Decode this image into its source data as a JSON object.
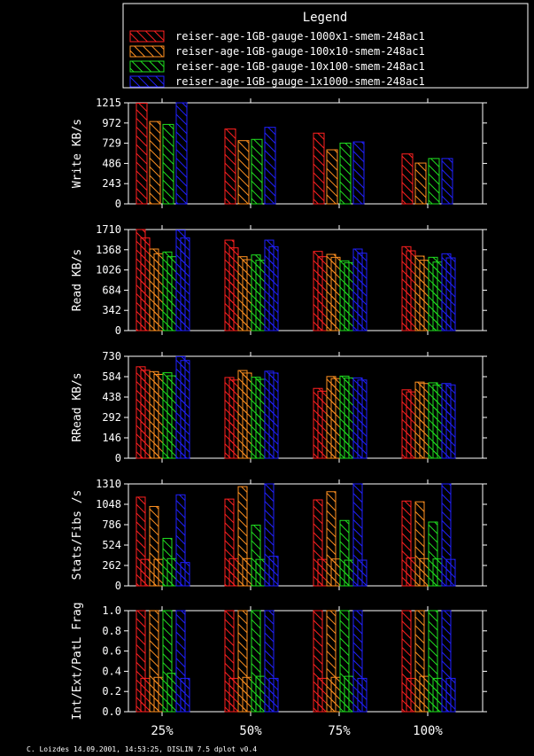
{
  "legend": {
    "title": "Legend",
    "entries": [
      {
        "name": "reiser-age-1GB-gauge-1000x1-smem-248ac1",
        "color": "#ff2020"
      },
      {
        "name": "reiser-age-1GB-gauge-100x10-smem-248ac1",
        "color": "#ff9020"
      },
      {
        "name": "reiser-age-1GB-gauge-10x100-smem-248ac1",
        "color": "#20e020"
      },
      {
        "name": "reiser-age-1GB-gauge-1x1000-smem-248ac1",
        "color": "#2020ff"
      }
    ]
  },
  "footer": "C. Loizdes 14.09.2001, 14:53:25, DISLIN 7.5 dplot v0.4",
  "chart_data": {
    "type": "bar",
    "categories": [
      "25%",
      "50%",
      "75%",
      "100%"
    ],
    "panels": [
      {
        "ylabel": "Write KB/s",
        "ylim": [
          0,
          1215
        ],
        "yticks": [
          "0",
          "243",
          "486",
          "729",
          "972",
          "1215"
        ],
        "series": [
          {
            "bars": [
              [
                1210
              ],
              [
                900
              ],
              [
                850
              ],
              [
                600
              ]
            ]
          },
          {
            "bars": [
              [
                990
              ],
              [
                760
              ],
              [
                650
              ],
              [
                490
              ]
            ]
          },
          {
            "bars": [
              [
                955
              ],
              [
                775
              ],
              [
                730
              ],
              [
                545
              ]
            ]
          },
          {
            "bars": [
              [
                1215
              ],
              [
                920
              ],
              [
                745
              ],
              [
                545
              ]
            ]
          }
        ]
      },
      {
        "ylabel": "Read KB/s",
        "ylim": [
          0,
          1710
        ],
        "yticks": [
          "0",
          "342",
          "684",
          "1026",
          "1368",
          "1710"
        ],
        "series": [
          {
            "bars": [
              [
                1710,
                1570
              ],
              [
                1530,
                1400
              ],
              [
                1340,
                1250
              ],
              [
                1420,
                1350
              ]
            ]
          },
          {
            "bars": [
              [
                1380,
                1300
              ],
              [
                1250,
                1200
              ],
              [
                1290,
                1240
              ],
              [
                1260,
                1190
              ]
            ]
          },
          {
            "bars": [
              [
                1330,
                1250
              ],
              [
                1280,
                1190
              ],
              [
                1180,
                1150
              ],
              [
                1240,
                1160
              ]
            ]
          },
          {
            "bars": [
              [
                1700,
                1570
              ],
              [
                1530,
                1420
              ],
              [
                1380,
                1310
              ],
              [
                1300,
                1230
              ]
            ]
          }
        ]
      },
      {
        "ylabel": "RRead KB/s",
        "ylim": [
          0,
          730
        ],
        "yticks": [
          "0",
          "146",
          "292",
          "438",
          "584",
          "730"
        ],
        "series": [
          {
            "bars": [
              [
                655,
                630
              ],
              [
                578,
                560
              ],
              [
                500,
                480
              ],
              [
                490,
                475
              ]
            ]
          },
          {
            "bars": [
              [
                620,
                600
              ],
              [
                628,
                610
              ],
              [
                585,
                570
              ],
              [
                545,
                535
              ]
            ]
          },
          {
            "bars": [
              [
                612,
                590
              ],
              [
                580,
                565
              ],
              [
                588,
                575
              ],
              [
                540,
                525
              ]
            ]
          },
          {
            "bars": [
              [
                728,
                700
              ],
              [
                623,
                610
              ],
              [
                575,
                560
              ],
              [
                535,
                525
              ]
            ]
          }
        ]
      },
      {
        "ylabel": "Stats/Fibs /s",
        "ylim": [
          0,
          1310
        ],
        "yticks": [
          "0",
          "262",
          "524",
          "786",
          "1048",
          "1310"
        ],
        "series": [
          {
            "bars": [
              [
                1140,
                340
              ],
              [
                1115,
                350
              ],
              [
                1105,
                340
              ],
              [
                1090,
                360
              ]
            ]
          },
          {
            "bars": [
              [
                1020,
                340
              ],
              [
                1275,
                350
              ],
              [
                1210,
                345
              ],
              [
                1080,
                350
              ]
            ]
          },
          {
            "bars": [
              [
                610,
                350
              ],
              [
                780,
                340
              ],
              [
                840,
                330
              ],
              [
                820,
                345
              ]
            ]
          },
          {
            "bars": [
              [
                1170,
                300
              ],
              [
                1310,
                380
              ],
              [
                1310,
                330
              ],
              [
                1310,
                340
              ]
            ]
          }
        ]
      },
      {
        "ylabel": "Int/Ext/PatL Frag",
        "ylim": [
          0,
          1.0
        ],
        "yticks": [
          "0.0",
          "0.2",
          "0.4",
          "0.6",
          "0.8",
          "1.0"
        ],
        "series": [
          {
            "bars": [
              [
                1.0,
                0.33
              ],
              [
                1.0,
                0.33
              ],
              [
                1.0,
                0.33
              ],
              [
                1.0,
                0.33
              ]
            ]
          },
          {
            "bars": [
              [
                1.0,
                0.34
              ],
              [
                1.0,
                0.34
              ],
              [
                1.0,
                0.34
              ],
              [
                1.0,
                0.35
              ]
            ]
          },
          {
            "bars": [
              [
                1.0,
                0.38
              ],
              [
                1.0,
                0.35
              ],
              [
                1.0,
                0.35
              ],
              [
                1.0,
                0.33
              ]
            ]
          },
          {
            "bars": [
              [
                1.0,
                0.33
              ],
              [
                1.0,
                0.33
              ],
              [
                1.0,
                0.33
              ],
              [
                1.0,
                0.33
              ]
            ]
          }
        ]
      }
    ]
  }
}
